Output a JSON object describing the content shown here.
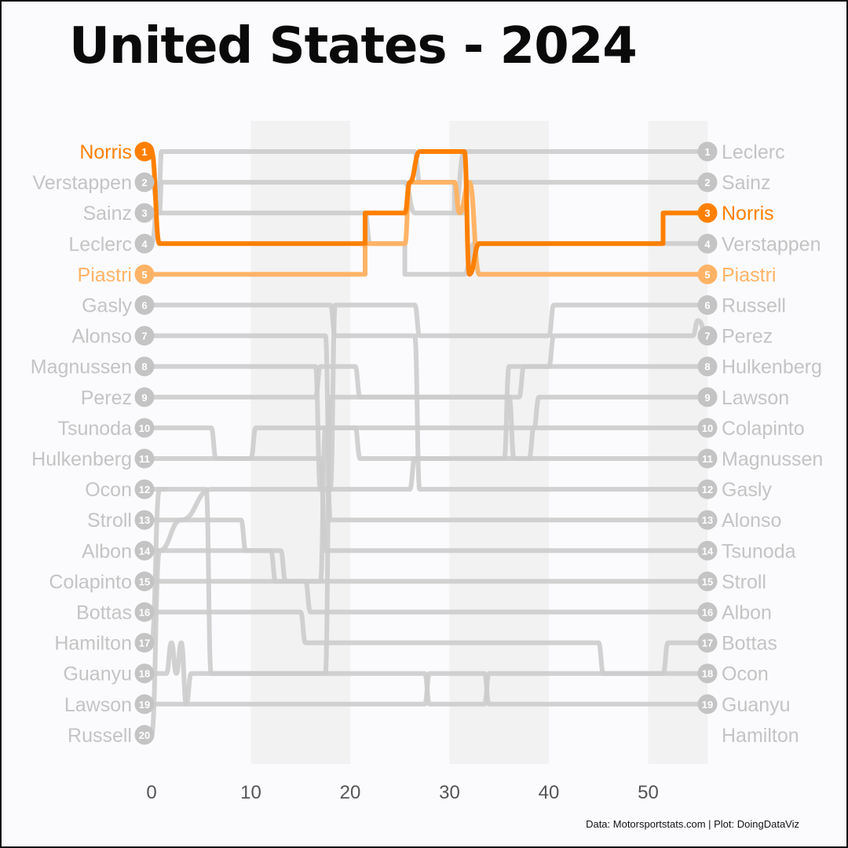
{
  "title": "United States - 2024",
  "caption": "Data: Motorsportstats.com | Plot: DoingDataViz",
  "colors": {
    "highlight_primary": "#ff8000",
    "highlight_secondary": "#ffb366",
    "other": "#cccccc",
    "other_label": "#c4c4c4",
    "band": "#f2f2f2",
    "background": "#fbfbfe"
  },
  "chart_data": {
    "type": "line",
    "title": "United States - 2024",
    "xlabel": "",
    "ylabel": "",
    "x_ticks": [
      0,
      10,
      20,
      30,
      40,
      50
    ],
    "xlim": [
      0,
      56
    ],
    "ylim": [
      20,
      1
    ],
    "y_reversed": true,
    "grid": false,
    "shaded_bands": [
      [
        10,
        20
      ],
      [
        30,
        40
      ],
      [
        50,
        56
      ]
    ],
    "start_grid": [
      {
        "position": 1,
        "driver": "Norris"
      },
      {
        "position": 2,
        "driver": "Verstappen"
      },
      {
        "position": 3,
        "driver": "Sainz"
      },
      {
        "position": 4,
        "driver": "Leclerc"
      },
      {
        "position": 5,
        "driver": "Piastri"
      },
      {
        "position": 6,
        "driver": "Gasly"
      },
      {
        "position": 7,
        "driver": "Alonso"
      },
      {
        "position": 8,
        "driver": "Magnussen"
      },
      {
        "position": 9,
        "driver": "Perez"
      },
      {
        "position": 10,
        "driver": "Tsunoda"
      },
      {
        "position": 11,
        "driver": "Hulkenberg"
      },
      {
        "position": 12,
        "driver": "Ocon"
      },
      {
        "position": 13,
        "driver": "Stroll"
      },
      {
        "position": 14,
        "driver": "Albon"
      },
      {
        "position": 15,
        "driver": "Colapinto"
      },
      {
        "position": 16,
        "driver": "Bottas"
      },
      {
        "position": 17,
        "driver": "Hamilton"
      },
      {
        "position": 18,
        "driver": "Guanyu"
      },
      {
        "position": 19,
        "driver": "Lawson"
      },
      {
        "position": 20,
        "driver": "Russell"
      }
    ],
    "finish_order": [
      {
        "position": 1,
        "driver": "Leclerc"
      },
      {
        "position": 2,
        "driver": "Sainz"
      },
      {
        "position": 3,
        "driver": "Norris"
      },
      {
        "position": 4,
        "driver": "Verstappen"
      },
      {
        "position": 5,
        "driver": "Piastri"
      },
      {
        "position": 6,
        "driver": "Russell"
      },
      {
        "position": 7,
        "driver": "Perez"
      },
      {
        "position": 8,
        "driver": "Hulkenberg"
      },
      {
        "position": 9,
        "driver": "Lawson"
      },
      {
        "position": 10,
        "driver": "Colapinto"
      },
      {
        "position": 11,
        "driver": "Magnussen"
      },
      {
        "position": 12,
        "driver": "Gasly"
      },
      {
        "position": 13,
        "driver": "Alonso"
      },
      {
        "position": 14,
        "driver": "Tsunoda"
      },
      {
        "position": 15,
        "driver": "Stroll"
      },
      {
        "position": 16,
        "driver": "Albon"
      },
      {
        "position": 17,
        "driver": "Bottas"
      },
      {
        "position": 18,
        "driver": "Ocon"
      },
      {
        "position": 19,
        "driver": "Guanyu"
      },
      {
        "position": null,
        "driver": "Hamilton"
      }
    ],
    "highlighted": [
      "Norris",
      "Piastri"
    ],
    "series": [
      {
        "name": "Norris",
        "color": "#ff8000",
        "highlight": true,
        "points": [
          [
            0,
            1
          ],
          [
            0.8,
            4
          ],
          [
            21.5,
            4
          ],
          [
            21.5,
            3
          ],
          [
            25.5,
            3
          ],
          [
            26,
            2
          ],
          [
            27,
            1
          ],
          [
            31.5,
            1
          ],
          [
            32,
            5
          ],
          [
            33,
            4
          ],
          [
            51.5,
            4
          ],
          [
            51.5,
            3
          ],
          [
            56,
            3
          ]
        ]
      },
      {
        "name": "Piastri",
        "color": "#ffb366",
        "highlight": true,
        "points": [
          [
            0,
            5
          ],
          [
            21.5,
            5
          ],
          [
            21.5,
            4
          ],
          [
            25.5,
            4
          ],
          [
            26,
            2
          ],
          [
            30.5,
            2
          ],
          [
            31,
            3
          ],
          [
            32,
            2
          ],
          [
            33,
            5
          ],
          [
            56,
            5
          ]
        ]
      },
      {
        "name": "Leclerc",
        "points": [
          [
            0,
            4
          ],
          [
            0.8,
            2
          ],
          [
            1,
            1
          ],
          [
            26.5,
            1
          ],
          [
            27,
            2
          ],
          [
            30.5,
            2
          ],
          [
            30.5,
            3
          ],
          [
            31.5,
            1
          ],
          [
            56,
            1
          ]
        ]
      },
      {
        "name": "Sainz",
        "points": [
          [
            0,
            3
          ],
          [
            0.8,
            3
          ],
          [
            1,
            2
          ],
          [
            25.5,
            2
          ],
          [
            26.5,
            3
          ],
          [
            30.5,
            3
          ],
          [
            31.5,
            3
          ],
          [
            32,
            2
          ],
          [
            56,
            2
          ]
        ]
      },
      {
        "name": "Verstappen",
        "points": [
          [
            0,
            2
          ],
          [
            0.8,
            3
          ],
          [
            21.5,
            3
          ],
          [
            22,
            4
          ],
          [
            25.5,
            4
          ],
          [
            25.5,
            5
          ],
          [
            31.5,
            5
          ],
          [
            32.5,
            4
          ],
          [
            56,
            4
          ]
        ]
      },
      {
        "name": "Russell",
        "points": [
          [
            0,
            20
          ],
          [
            0.8,
            14
          ],
          [
            3,
            13
          ],
          [
            6,
            12
          ],
          [
            18,
            12
          ],
          [
            18.5,
            6
          ],
          [
            26.5,
            6
          ],
          [
            27,
            7
          ],
          [
            40,
            7
          ],
          [
            40.5,
            6
          ],
          [
            54.5,
            6
          ],
          [
            55,
            6
          ],
          [
            56,
            6
          ]
        ]
      },
      {
        "name": "Perez",
        "points": [
          [
            0,
            9
          ],
          [
            16.5,
            9
          ],
          [
            17,
            8
          ],
          [
            20.5,
            8
          ],
          [
            21,
            9
          ],
          [
            37,
            9
          ],
          [
            37.5,
            8
          ],
          [
            40,
            8
          ],
          [
            40.5,
            7
          ],
          [
            54.5,
            7
          ],
          [
            55,
            6.5
          ],
          [
            56,
            7
          ]
        ]
      },
      {
        "name": "Hulkenberg",
        "points": [
          [
            0,
            11
          ],
          [
            10,
            11
          ],
          [
            10.5,
            10
          ],
          [
            20.5,
            10
          ],
          [
            21,
            11
          ],
          [
            35.5,
            11
          ],
          [
            36,
            8
          ],
          [
            44.5,
            8
          ],
          [
            45,
            8
          ],
          [
            56,
            8
          ]
        ]
      },
      {
        "name": "Lawson",
        "points": [
          [
            0,
            19
          ],
          [
            3.5,
            19
          ],
          [
            4,
            18
          ],
          [
            17.5,
            18
          ],
          [
            18,
            9
          ],
          [
            36,
            9
          ],
          [
            36.5,
            11
          ],
          [
            38,
            11
          ],
          [
            38.5,
            10
          ],
          [
            39,
            9
          ],
          [
            56,
            9
          ]
        ]
      },
      {
        "name": "Colapinto",
        "points": [
          [
            0,
            15
          ],
          [
            17,
            15
          ],
          [
            17.5,
            10
          ],
          [
            27,
            10
          ],
          [
            27.5,
            10
          ],
          [
            44.5,
            10
          ],
          [
            45,
            10
          ],
          [
            56,
            10
          ]
        ]
      },
      {
        "name": "Magnussen",
        "points": [
          [
            0,
            8
          ],
          [
            16.5,
            8
          ],
          [
            17,
            12
          ],
          [
            26,
            12
          ],
          [
            26.5,
            11
          ],
          [
            46,
            11
          ],
          [
            46.5,
            11
          ],
          [
            56,
            11
          ]
        ]
      },
      {
        "name": "Gasly",
        "points": [
          [
            0,
            6
          ],
          [
            18,
            6
          ],
          [
            18.5,
            7
          ],
          [
            26.5,
            7
          ],
          [
            27,
            12
          ],
          [
            39,
            12
          ],
          [
            39.5,
            12
          ],
          [
            56,
            12
          ]
        ]
      },
      {
        "name": "Alonso",
        "points": [
          [
            0,
            7
          ],
          [
            17.5,
            7
          ],
          [
            18,
            13
          ],
          [
            35,
            13
          ],
          [
            35.5,
            13
          ],
          [
            38,
            13
          ],
          [
            38.5,
            13
          ],
          [
            56,
            13
          ]
        ]
      },
      {
        "name": "Tsunoda",
        "points": [
          [
            0,
            10
          ],
          [
            6,
            10
          ],
          [
            6.5,
            11
          ],
          [
            17,
            11
          ],
          [
            17.5,
            14
          ],
          [
            56,
            14
          ]
        ]
      },
      {
        "name": "Stroll",
        "points": [
          [
            0,
            13
          ],
          [
            9,
            13
          ],
          [
            9.5,
            14
          ],
          [
            13,
            14
          ],
          [
            13.5,
            15
          ],
          [
            44.5,
            15
          ],
          [
            45,
            15
          ],
          [
            51.5,
            15
          ],
          [
            52,
            15
          ],
          [
            56,
            15
          ]
        ]
      },
      {
        "name": "Albon",
        "points": [
          [
            0,
            14
          ],
          [
            12,
            14
          ],
          [
            12.5,
            15
          ],
          [
            15.5,
            15
          ],
          [
            16,
            16
          ],
          [
            44.5,
            16
          ],
          [
            45,
            16
          ],
          [
            51.5,
            16
          ],
          [
            52,
            16
          ],
          [
            56,
            16
          ]
        ]
      },
      {
        "name": "Bottas",
        "points": [
          [
            0,
            16
          ],
          [
            15,
            16
          ],
          [
            15.5,
            17
          ],
          [
            45,
            17
          ],
          [
            45.5,
            18
          ],
          [
            51.5,
            18
          ],
          [
            52,
            17
          ],
          [
            56,
            17
          ]
        ]
      },
      {
        "name": "Ocon",
        "points": [
          [
            0,
            12
          ],
          [
            0.8,
            12
          ],
          [
            1.2,
            12
          ],
          [
            5.5,
            12
          ],
          [
            6,
            18
          ],
          [
            27.5,
            18
          ],
          [
            28,
            19
          ],
          [
            33.5,
            19
          ],
          [
            34,
            18
          ],
          [
            56,
            18
          ]
        ]
      },
      {
        "name": "Guanyu",
        "points": [
          [
            0,
            18
          ],
          [
            1.5,
            18
          ],
          [
            2,
            17
          ],
          [
            2.5,
            18
          ],
          [
            3,
            17
          ],
          [
            3.5,
            19
          ],
          [
            27.5,
            19
          ],
          [
            28,
            18
          ],
          [
            33.5,
            18
          ],
          [
            34,
            19
          ],
          [
            56,
            19
          ]
        ]
      },
      {
        "name": "Hamilton",
        "points": [
          [
            0,
            17
          ],
          [
            0.8,
            12
          ],
          [
            1.5,
            12
          ]
        ]
      }
    ]
  }
}
